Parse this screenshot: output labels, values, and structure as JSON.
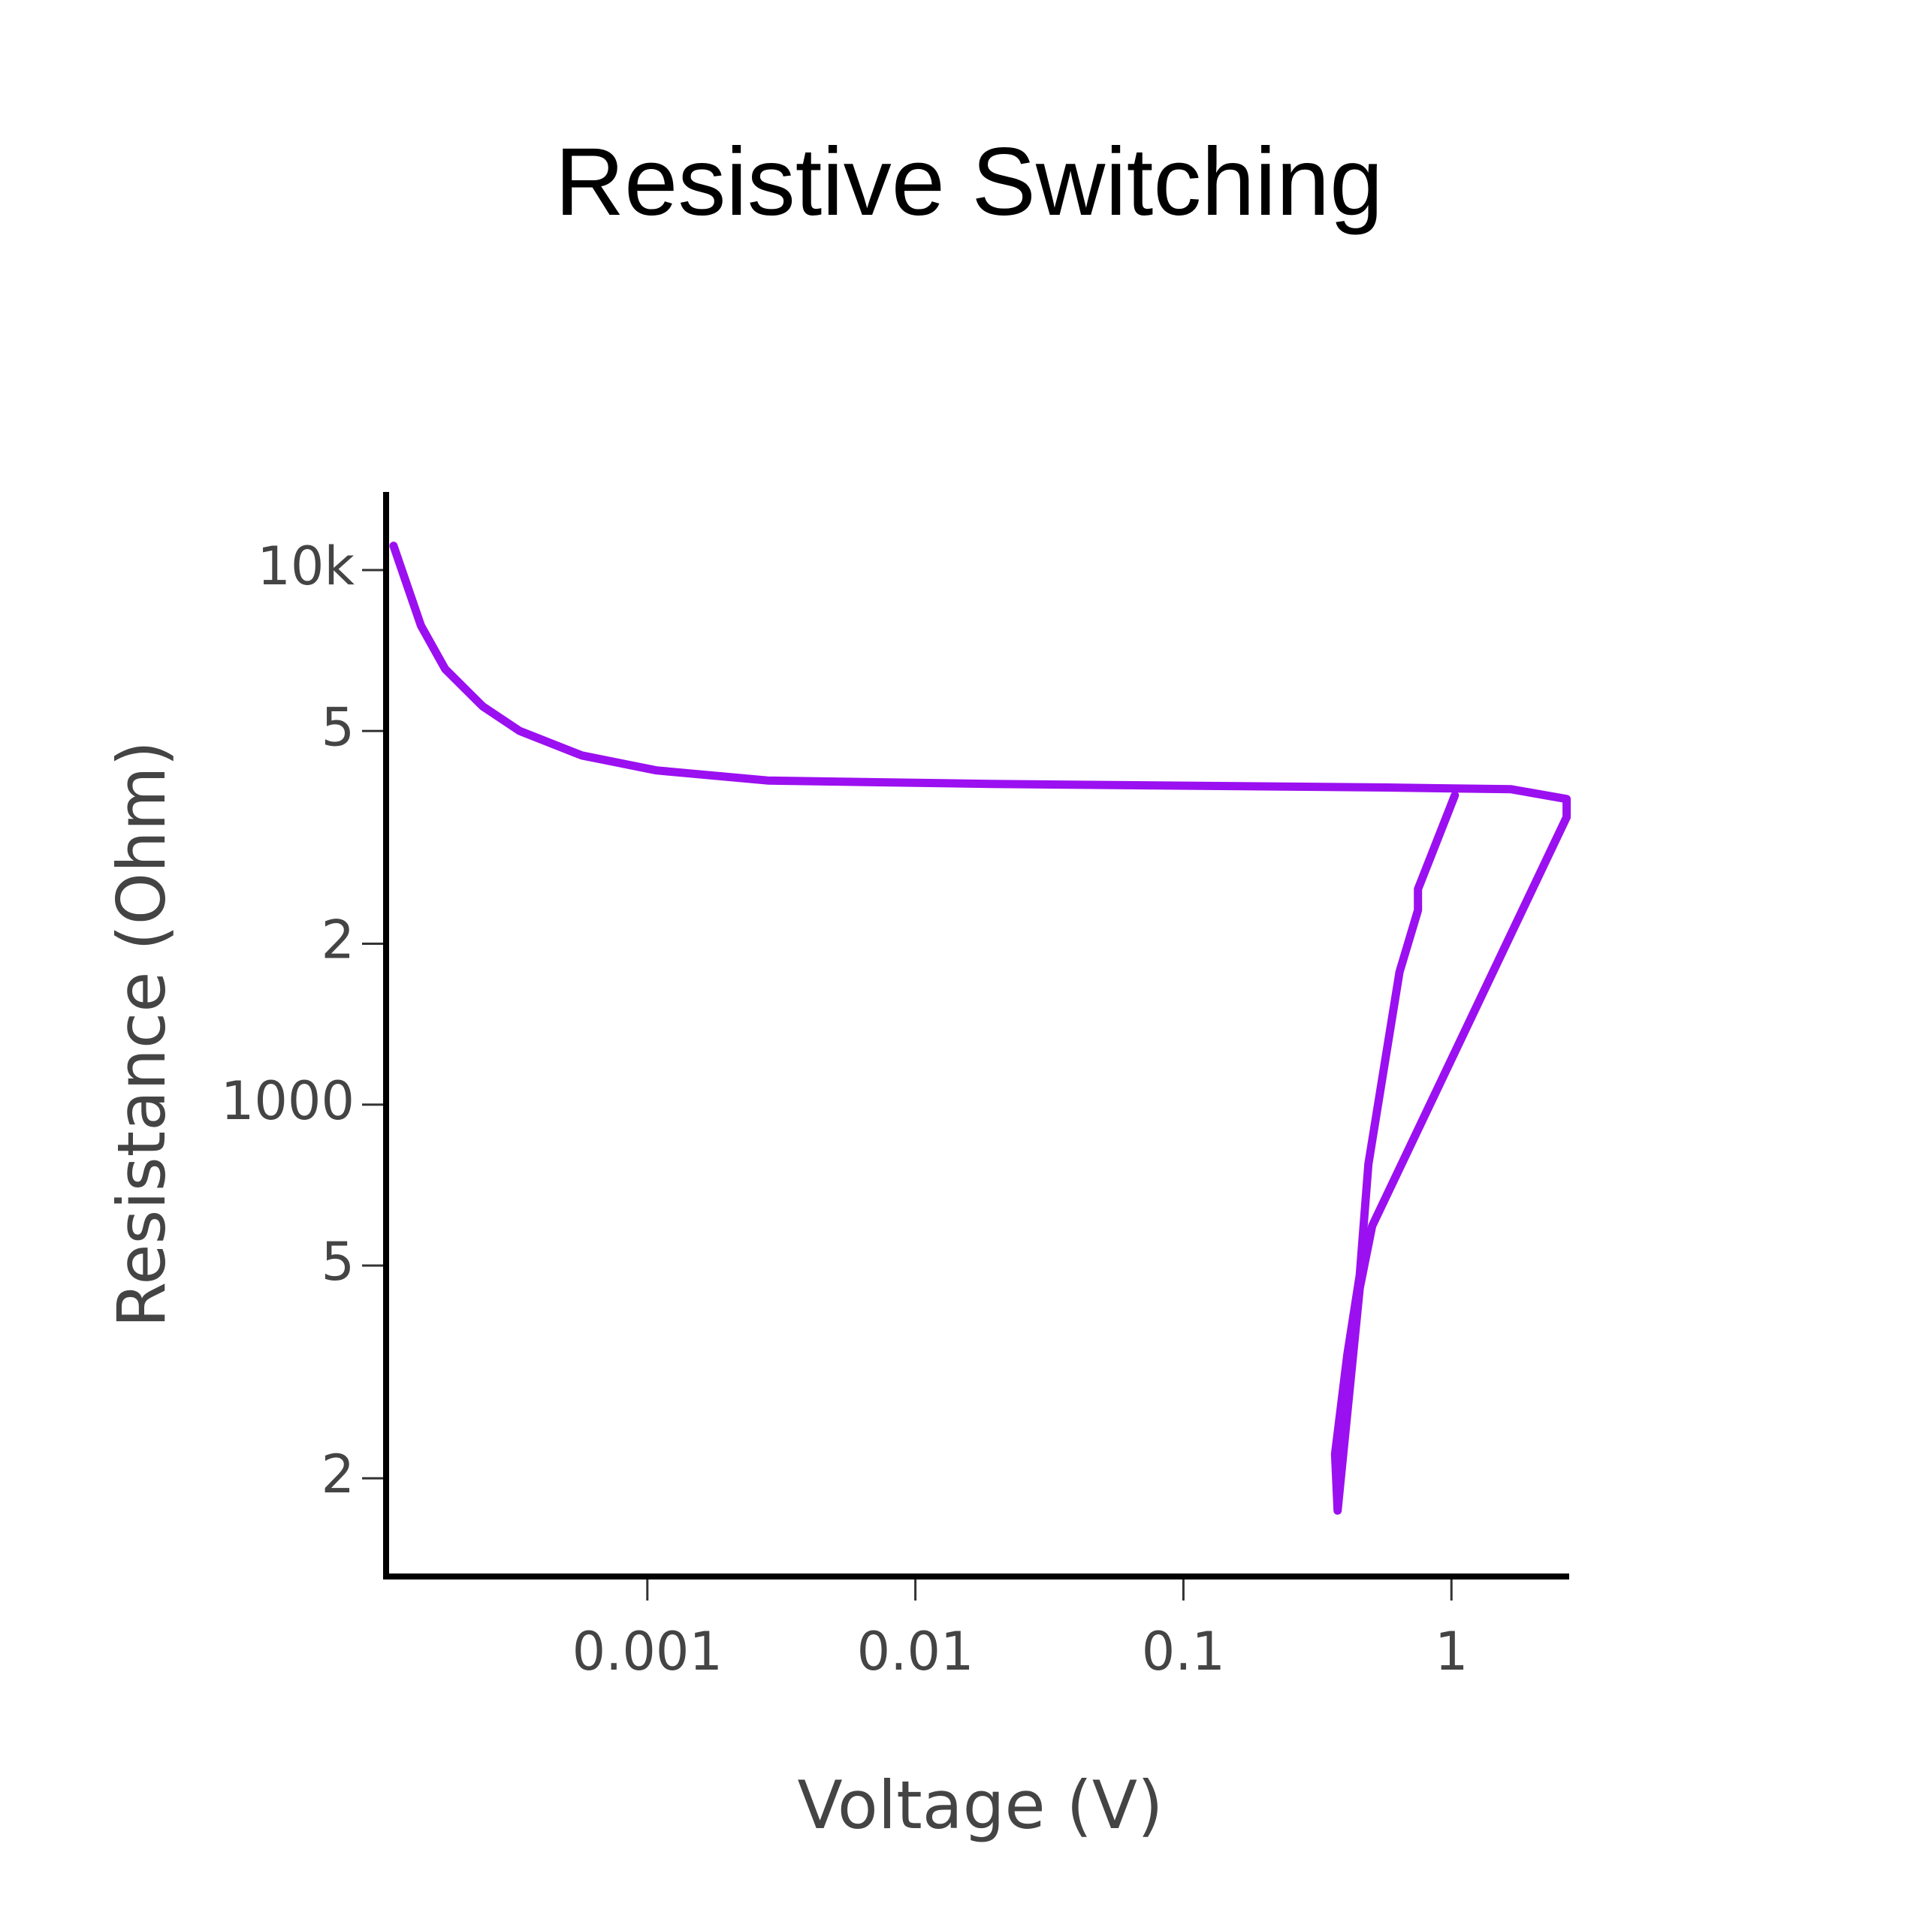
{
  "chart_data": {
    "type": "line",
    "title": "Resistive Switching",
    "x_label": "Voltage (V)",
    "y_label": "Resistance (Ohm)",
    "x_scale": "log",
    "y_scale": "log",
    "xlim": [
      0.000106,
      2.75
    ],
    "ylim": [
      131,
      14000
    ],
    "xticks": [
      0.001,
      0.01,
      0.1,
      1
    ],
    "yticks": [
      {
        "value": 200,
        "label": "2"
      },
      {
        "value": 500,
        "label": "5"
      },
      1000,
      {
        "value": 2000,
        "label": "2"
      },
      {
        "value": 5000,
        "label": "5"
      },
      {
        "value": 10000,
        "label": "10k"
      }
    ],
    "series": [
      {
        "color": "#9b10f0",
        "x": [
          0.000113,
          0.000143,
          0.000176,
          0.000243,
          0.000334,
          0.000569,
          0.00108,
          0.00281,
          0.0191,
          0.575,
          1.67,
          2.69,
          2.69,
          0.506,
          0.455,
          0.376,
          0.368,
          0.409,
          0.455,
          0.49,
          0.64,
          0.75,
          0.75,
          1.03
        ],
        "values": [
          11100,
          7870,
          6530,
          5560,
          5000,
          4500,
          4220,
          4040,
          3980,
          3920,
          3890,
          3730,
          3450,
          593,
          454,
          174,
          222,
          341,
          480,
          774,
          1770,
          2310,
          2530,
          3790
        ]
      }
    ]
  }
}
